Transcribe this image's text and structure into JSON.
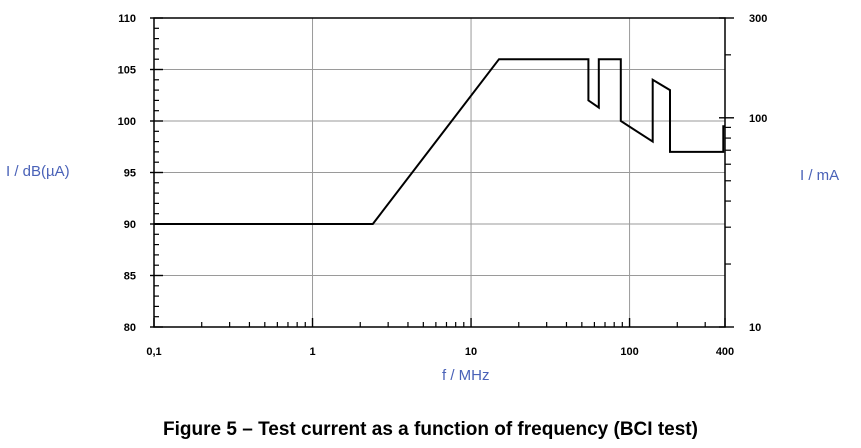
{
  "chart_data": {
    "type": "line",
    "title": "Figure 5 – Test current as a function of frequency (BCI test)",
    "xlabel": "f / MHz",
    "ylabel": "I / dB(µA)",
    "ylabel_right": "I / mA",
    "x_scale": "log",
    "xlim": [
      0.1,
      400
    ],
    "ylim": [
      80,
      110
    ],
    "y2_scale": "log",
    "y2lim": [
      10,
      300
    ],
    "grid": true,
    "x_ticks": [
      {
        "value": 0.1,
        "label": "0,1"
      },
      {
        "value": 1,
        "label": "1"
      },
      {
        "value": 10,
        "label": "10"
      },
      {
        "value": 100,
        "label": "100"
      },
      {
        "value": 400,
        "label": "400"
      }
    ],
    "y_ticks": [
      {
        "value": 80,
        "label": "80"
      },
      {
        "value": 85,
        "label": "85"
      },
      {
        "value": 90,
        "label": "90"
      },
      {
        "value": 95,
        "label": "95"
      },
      {
        "value": 100,
        "label": "100"
      },
      {
        "value": 105,
        "label": "105"
      },
      {
        "value": 110,
        "label": "110"
      }
    ],
    "y2_ticks": [
      {
        "value": 10,
        "label": "10"
      },
      {
        "value": 100,
        "label": "100"
      },
      {
        "value": 300,
        "label": "300"
      }
    ],
    "series": [
      {
        "x": [
          0.1,
          2.4,
          15,
          55,
          55,
          64,
          64,
          88,
          88,
          140,
          140,
          180,
          180,
          390,
          390,
          400
        ],
        "y": [
          90,
          90,
          106,
          106,
          102,
          101.3,
          106,
          106,
          100,
          98,
          104,
          103,
          97,
          97,
          99.5,
          99.5
        ]
      }
    ]
  }
}
